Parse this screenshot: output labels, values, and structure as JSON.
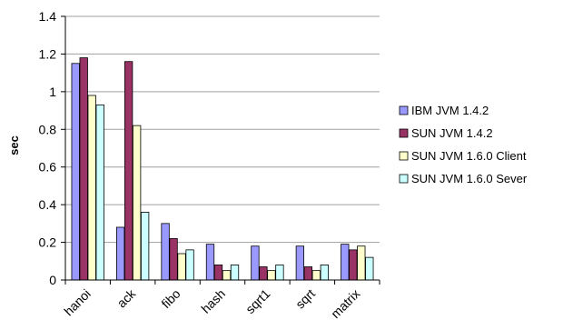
{
  "chart_data": {
    "type": "bar",
    "title": "",
    "xlabel": "",
    "ylabel": "sec",
    "ylim": [
      0,
      1.4
    ],
    "yticks": [
      "0",
      "0.2",
      "0.4",
      "0.6",
      "0.8",
      "1",
      "1.2",
      "1.4"
    ],
    "grid": true,
    "legend_position": "right",
    "categories": [
      "hanoi",
      "ack",
      "fibo",
      "hash",
      "sqrt1",
      "sqrt",
      "matrix"
    ],
    "series": [
      {
        "name": "IBM JVM 1.4.2",
        "color": "#9999ff",
        "values": [
          1.15,
          0.28,
          0.3,
          0.19,
          0.18,
          0.18,
          0.19
        ]
      },
      {
        "name": "SUN JVM 1.4.2",
        "color": "#993366",
        "values": [
          1.18,
          1.16,
          0.22,
          0.08,
          0.07,
          0.07,
          0.16
        ]
      },
      {
        "name": "SUN JVM 1.6.0 Client",
        "color": "#ffffcc",
        "values": [
          0.98,
          0.82,
          0.14,
          0.05,
          0.05,
          0.05,
          0.18
        ]
      },
      {
        "name": "SUN JVM 1.6.0 Sever",
        "color": "#ccffff",
        "values": [
          0.93,
          0.36,
          0.16,
          0.08,
          0.08,
          0.08,
          0.12
        ]
      }
    ]
  }
}
